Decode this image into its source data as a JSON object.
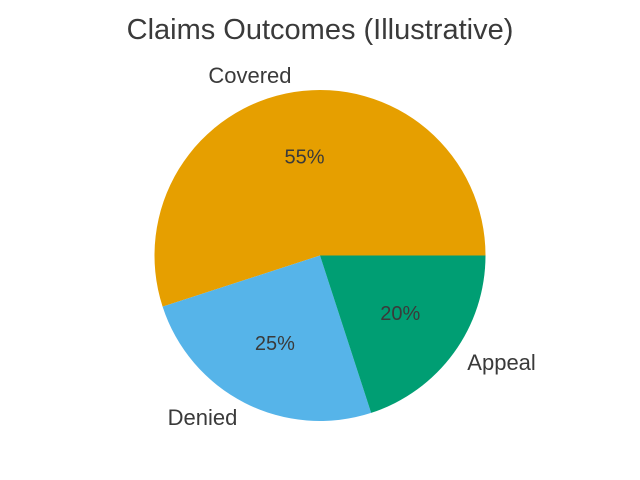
{
  "chart_data": {
    "type": "pie",
    "title": "Claims Outcomes (Illustrative)",
    "labels": [
      "Covered",
      "Denied",
      "Appeal"
    ],
    "values": [
      55,
      25,
      20
    ],
    "pct_labels": [
      "55%",
      "25%",
      "20%"
    ],
    "colors": [
      "#E69F00",
      "#56B4E9",
      "#009E73"
    ],
    "start_angle_deg": 0,
    "direction": "counterclockwise",
    "label_distance": 1.1,
    "pct_distance": 0.6,
    "text_color": "#3a3a3a",
    "background_color": "#ffffff",
    "legend": "none",
    "grid": false
  }
}
